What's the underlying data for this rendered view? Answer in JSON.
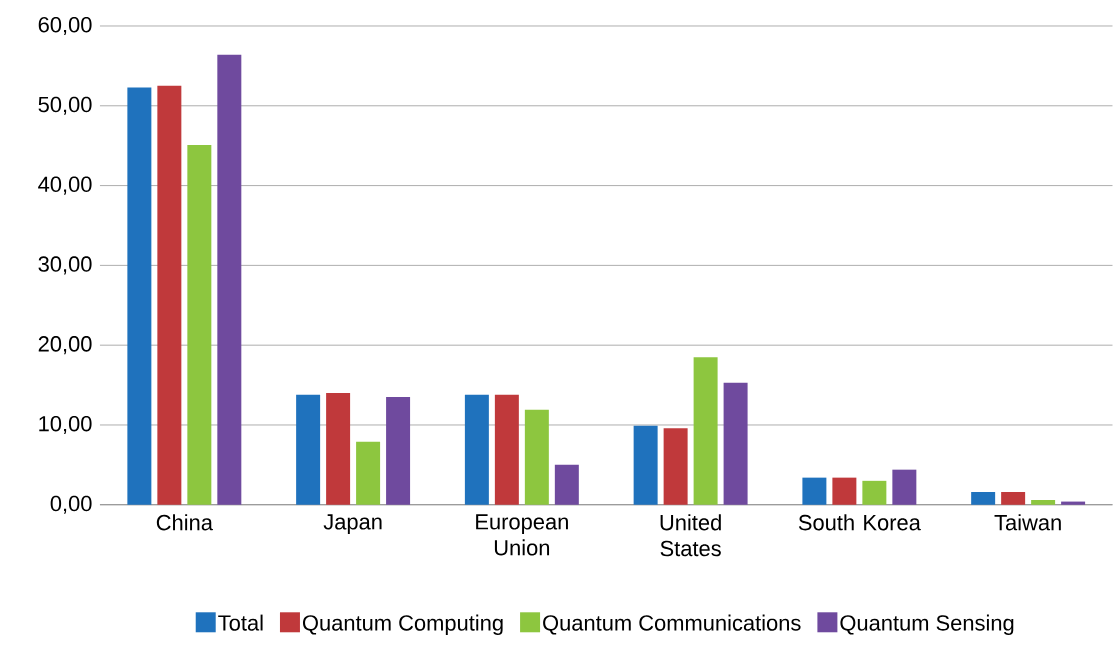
{
  "chart_data": {
    "type": "bar",
    "categories": [
      "China",
      "Japan",
      "European Union",
      "United States",
      "South Korea",
      "Taiwan"
    ],
    "series": [
      {
        "name": "Total",
        "color": "#1f72bd",
        "values": [
          52.3,
          13.8,
          13.8,
          9.9,
          3.4,
          1.6
        ]
      },
      {
        "name": "Quantum Computing",
        "color": "#c0393b",
        "values": [
          52.5,
          14.0,
          13.8,
          9.6,
          3.4,
          1.6
        ]
      },
      {
        "name": "Quantum Communications",
        "color": "#8dc63f",
        "values": [
          45.1,
          7.9,
          11.9,
          18.5,
          3.0,
          0.6
        ]
      },
      {
        "name": "Quantum Sensing",
        "color": "#6f4a9e",
        "values": [
          56.4,
          13.5,
          5.0,
          15.3,
          4.4,
          0.4
        ]
      }
    ],
    "ylim": [
      0,
      60
    ],
    "yticks": [
      {
        "value": 0,
        "label": "0,00"
      },
      {
        "value": 10,
        "label": "10,00"
      },
      {
        "value": 20,
        "label": "20,00"
      },
      {
        "value": 30,
        "label": "30,00"
      },
      {
        "value": 40,
        "label": "40,00"
      },
      {
        "value": 50,
        "label": "50,00"
      },
      {
        "value": 60,
        "label": "60,00"
      }
    ],
    "grid": "y",
    "legend": "bottom"
  }
}
